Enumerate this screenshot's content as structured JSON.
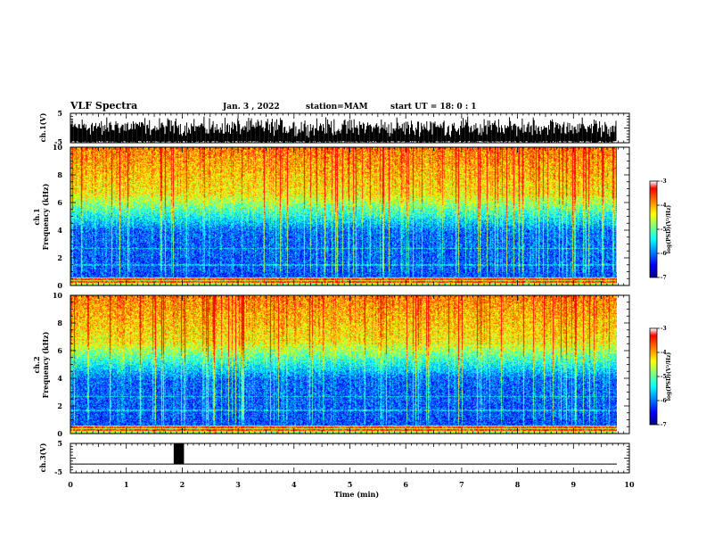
{
  "header": {
    "title": "VLF Spectra",
    "date": "Jan. 3 , 2022",
    "station": "station=MAM",
    "start": "start UT = 18: 0 : 1"
  },
  "chart_data": [
    {
      "type": "line",
      "name": "ch1-waveform",
      "ylabel": "ch.1(V)",
      "ylim": [
        -5,
        5
      ],
      "y_ticks": [
        "5",
        "-5"
      ],
      "xlim": [
        0,
        10
      ]
    },
    {
      "type": "heatmap",
      "name": "ch1-spectrogram",
      "ylabel_line1": "ch.1",
      "ylabel_line2": "Frequency (kHz)",
      "ylim": [
        0,
        10
      ],
      "y_ticks": [
        "0",
        "2",
        "4",
        "6",
        "8",
        "10"
      ],
      "xlim": [
        0,
        9.8
      ],
      "colorbar": {
        "label": "log(PSD)(V²/Hz)",
        "range": [
          -7,
          -3
        ],
        "ticks": [
          "-3",
          "-4",
          "-5",
          "-6",
          "-7"
        ]
      }
    },
    {
      "type": "heatmap",
      "name": "ch2-spectrogram",
      "ylabel_line1": "ch.2",
      "ylabel_line2": "Frequency (kHz)",
      "ylim": [
        0,
        10
      ],
      "y_ticks": [
        "0",
        "2",
        "4",
        "6",
        "8",
        "10"
      ],
      "xlim": [
        0,
        9.8
      ],
      "colorbar": {
        "label": "log(PSD)(V²/Hz)",
        "range": [
          -7,
          -3
        ],
        "ticks": [
          "-3",
          "-4",
          "-5",
          "-6",
          "-7"
        ]
      }
    },
    {
      "type": "line",
      "name": "ch3-signal",
      "ylabel": "ch.3(V)",
      "ylim": [
        -5,
        5
      ],
      "y_ticks": [
        "5",
        "-5"
      ],
      "baseline": -2,
      "pulse": {
        "start": 1.8,
        "end": 2.0,
        "high": 5
      },
      "xlabel": "Time (min)",
      "x_ticks": [
        "0",
        "1",
        "2",
        "3",
        "4",
        "5",
        "6",
        "7",
        "8",
        "9",
        "10"
      ],
      "xlim": [
        0,
        10
      ]
    }
  ],
  "colors": {
    "colormap": [
      "#00007f",
      "#0000ff",
      "#007fff",
      "#00ffff",
      "#7fff7f",
      "#ffff00",
      "#ff7f00",
      "#ff0000",
      "#ffffff"
    ]
  }
}
